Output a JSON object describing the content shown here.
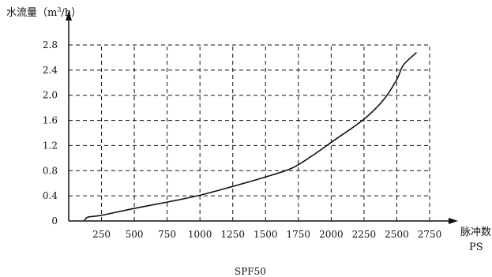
{
  "chart_data": {
    "type": "line",
    "caption": "SPF50",
    "ylabel": {
      "prefix": "水流量（m",
      "sup": "3",
      "suffix": "/h）"
    },
    "xlabel": {
      "line1": "脉冲数",
      "line2": "PS"
    },
    "xlim": [
      0,
      2750
    ],
    "ylim": [
      0,
      2.8
    ],
    "grid": true,
    "x_ticks": [
      250,
      500,
      750,
      1000,
      1250,
      1500,
      1750,
      2000,
      2250,
      2500,
      2750
    ],
    "x_tick_labels": [
      "250",
      "500",
      "750",
      "1000",
      "1250",
      "1500",
      "1750",
      "2000",
      "2250",
      "2500",
      "2750"
    ],
    "y_ticks": [
      0,
      0.4,
      0.8,
      1.2,
      1.6,
      2.0,
      2.4,
      2.8
    ],
    "y_tick_labels": [
      "0",
      "0.4",
      "0.8",
      "1.2",
      "1.6",
      "2.0",
      "2.4",
      "2.8"
    ],
    "series": [
      {
        "x": [
          120,
          145,
          250,
          500,
          750,
          1000,
          1250,
          1500,
          1700,
          1850,
          2000,
          2250,
          2400,
          2500,
          2550,
          2650
        ],
        "y": [
          0,
          0.06,
          0.09,
          0.2,
          0.3,
          0.41,
          0.55,
          0.7,
          0.84,
          1.03,
          1.25,
          1.62,
          1.93,
          2.25,
          2.48,
          2.68
        ]
      }
    ],
    "line_color": "#111111"
  }
}
